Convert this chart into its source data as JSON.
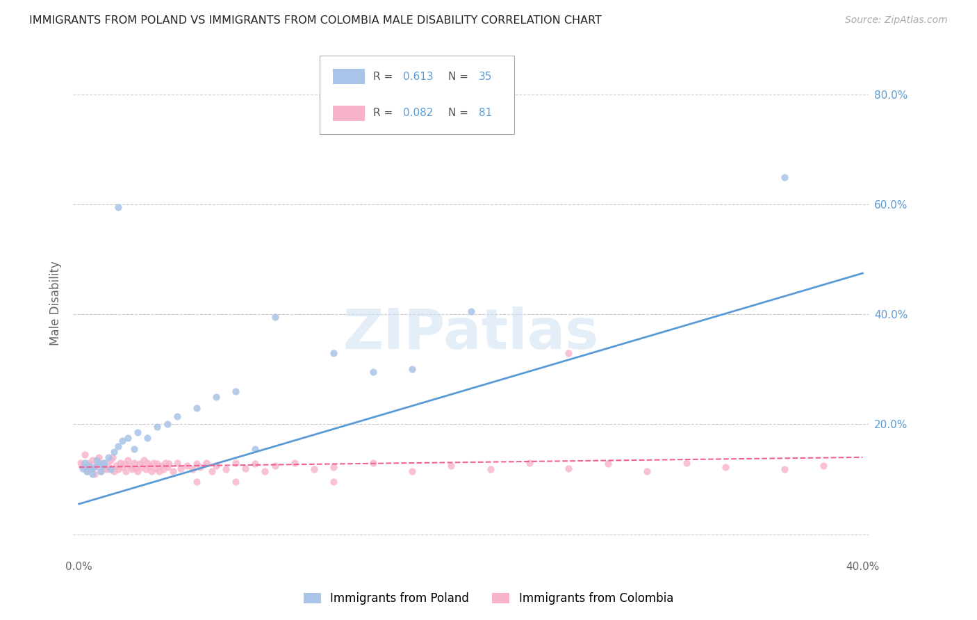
{
  "title": "IMMIGRANTS FROM POLAND VS IMMIGRANTS FROM COLOMBIA MALE DISABILITY CORRELATION CHART",
  "source": "Source: ZipAtlas.com",
  "ylabel": "Male Disability",
  "legend_label1": "Immigrants from Poland",
  "legend_label2": "Immigrants from Colombia",
  "R1": 0.613,
  "N1": 35,
  "R2": 0.082,
  "N2": 81,
  "color1": "#a8c4e8",
  "color2": "#f7b3c8",
  "line_color1": "#5b9bd5",
  "line_color2": "#f06090",
  "watermark": "ZIPatlas",
  "xlim": [
    -0.003,
    0.403
  ],
  "ylim": [
    -0.04,
    0.88
  ],
  "xticks": [
    0.0,
    0.1,
    0.2,
    0.3,
    0.4
  ],
  "xtick_labels": [
    "0.0%",
    "",
    "",
    "",
    "40.0%"
  ],
  "yticks_right": [
    0.2,
    0.4,
    0.6,
    0.8
  ],
  "ytick_labels_right": [
    "20.0%",
    "40.0%",
    "60.0%",
    "80.0%"
  ],
  "poland_x": [
    0.002,
    0.003,
    0.004,
    0.005,
    0.006,
    0.007,
    0.008,
    0.009,
    0.01,
    0.011,
    0.012,
    0.013,
    0.015,
    0.016,
    0.018,
    0.02,
    0.022,
    0.025,
    0.028,
    0.03,
    0.035,
    0.04,
    0.045,
    0.05,
    0.06,
    0.07,
    0.08,
    0.1,
    0.13,
    0.15,
    0.17,
    0.2,
    0.36,
    0.02,
    0.09
  ],
  "poland_y": [
    0.12,
    0.13,
    0.115,
    0.125,
    0.118,
    0.11,
    0.122,
    0.135,
    0.128,
    0.115,
    0.125,
    0.13,
    0.14,
    0.118,
    0.15,
    0.16,
    0.17,
    0.175,
    0.155,
    0.185,
    0.175,
    0.195,
    0.2,
    0.215,
    0.23,
    0.25,
    0.26,
    0.395,
    0.33,
    0.295,
    0.3,
    0.405,
    0.65,
    0.595,
    0.155
  ],
  "colombia_x": [
    0.001,
    0.002,
    0.003,
    0.004,
    0.005,
    0.006,
    0.007,
    0.008,
    0.009,
    0.01,
    0.011,
    0.012,
    0.013,
    0.014,
    0.015,
    0.016,
    0.017,
    0.018,
    0.019,
    0.02,
    0.021,
    0.022,
    0.023,
    0.024,
    0.025,
    0.026,
    0.027,
    0.028,
    0.029,
    0.03,
    0.031,
    0.032,
    0.033,
    0.034,
    0.035,
    0.036,
    0.037,
    0.038,
    0.039,
    0.04,
    0.041,
    0.042,
    0.043,
    0.044,
    0.045,
    0.046,
    0.048,
    0.05,
    0.052,
    0.055,
    0.058,
    0.06,
    0.062,
    0.065,
    0.068,
    0.07,
    0.075,
    0.08,
    0.085,
    0.09,
    0.095,
    0.1,
    0.11,
    0.12,
    0.13,
    0.15,
    0.17,
    0.19,
    0.21,
    0.23,
    0.25,
    0.27,
    0.29,
    0.31,
    0.33,
    0.36,
    0.38,
    0.25,
    0.13,
    0.08,
    0.06
  ],
  "colombia_y": [
    0.13,
    0.125,
    0.145,
    0.115,
    0.13,
    0.12,
    0.135,
    0.11,
    0.125,
    0.14,
    0.115,
    0.13,
    0.12,
    0.118,
    0.125,
    0.135,
    0.14,
    0.115,
    0.125,
    0.118,
    0.13,
    0.122,
    0.128,
    0.115,
    0.135,
    0.125,
    0.118,
    0.13,
    0.12,
    0.115,
    0.128,
    0.122,
    0.135,
    0.118,
    0.13,
    0.125,
    0.115,
    0.13,
    0.12,
    0.128,
    0.115,
    0.125,
    0.118,
    0.13,
    0.122,
    0.128,
    0.115,
    0.13,
    0.12,
    0.125,
    0.118,
    0.128,
    0.122,
    0.13,
    0.115,
    0.125,
    0.118,
    0.13,
    0.12,
    0.128,
    0.115,
    0.125,
    0.13,
    0.118,
    0.122,
    0.13,
    0.115,
    0.125,
    0.118,
    0.13,
    0.12,
    0.128,
    0.115,
    0.13,
    0.122,
    0.118,
    0.125,
    0.33,
    0.095,
    0.095,
    0.095
  ],
  "blue_line_x": [
    0.0,
    0.4
  ],
  "blue_line_y": [
    0.055,
    0.475
  ],
  "pink_line_x": [
    0.0,
    0.4
  ],
  "pink_line_y": [
    0.122,
    0.14
  ]
}
